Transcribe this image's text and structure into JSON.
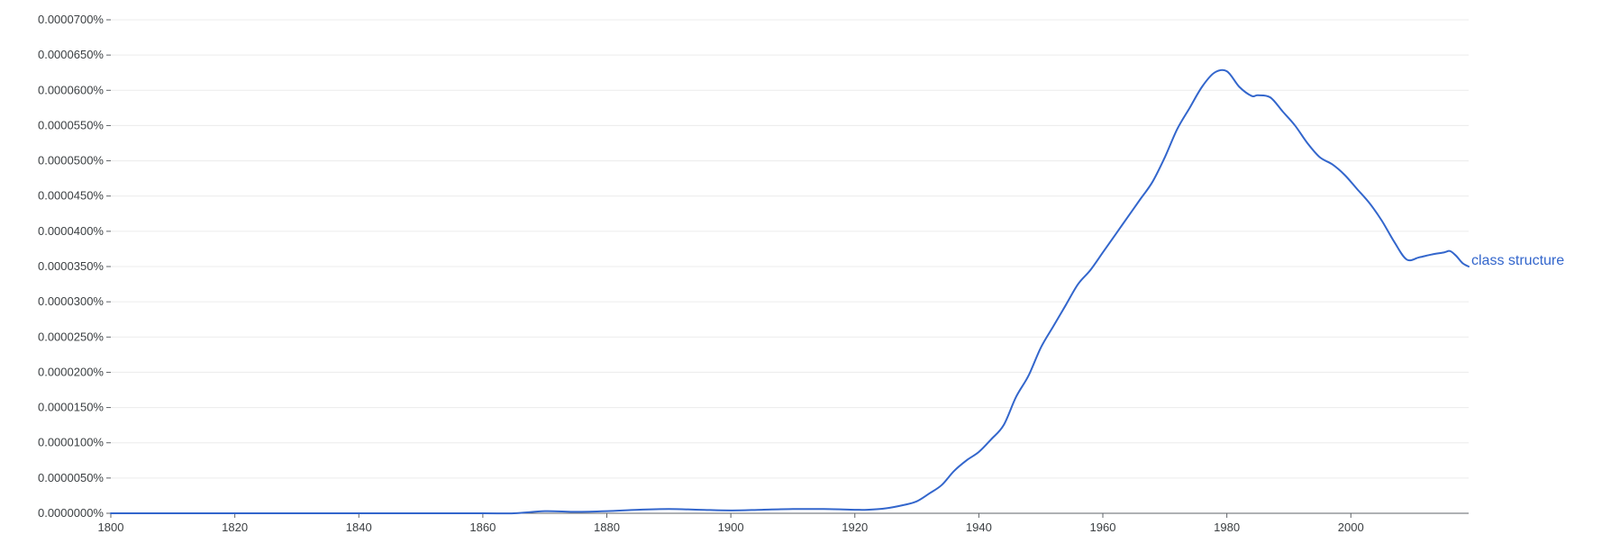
{
  "chart_data": {
    "type": "line",
    "title": "",
    "xlabel": "",
    "ylabel": "",
    "xlim": [
      1800,
      2019
    ],
    "ylim": [
      0,
      7e-07
    ],
    "grid": true,
    "legend": "inline-end-of-line",
    "x_ticks": [
      1800,
      1820,
      1840,
      1860,
      1880,
      1900,
      1920,
      1940,
      1960,
      1980,
      2000
    ],
    "x_tick_labels": [
      "1800",
      "1820",
      "1840",
      "1860",
      "1880",
      "1900",
      "1920",
      "1940",
      "1960",
      "1980",
      "2000"
    ],
    "y_ticks": [
      0,
      5e-08,
      1e-07,
      1.5e-07,
      2e-07,
      2.5e-07,
      3e-07,
      3.5e-07,
      4e-07,
      4.5e-07,
      5e-07,
      5.5e-07,
      6e-07,
      6.5e-07,
      7e-07
    ],
    "y_tick_labels": [
      "0.0000000%",
      "0.0000050%",
      "0.0000100%",
      "0.0000150%",
      "0.0000200%",
      "0.0000250%",
      "0.0000300%",
      "0.0000350%",
      "0.0000400%",
      "0.0000450%",
      "0.0000500%",
      "0.0000550%",
      "0.0000600%",
      "0.0000650%",
      "0.0000700%"
    ],
    "series": [
      {
        "name": "class structure",
        "color": "#3366cc",
        "x": [
          1800,
          1810,
          1820,
          1830,
          1840,
          1850,
          1860,
          1865,
          1870,
          1875,
          1880,
          1885,
          1890,
          1895,
          1900,
          1905,
          1910,
          1915,
          1920,
          1922,
          1925,
          1928,
          1930,
          1932,
          1934,
          1936,
          1938,
          1940,
          1942,
          1944,
          1946,
          1948,
          1950,
          1952,
          1954,
          1956,
          1958,
          1960,
          1962,
          1964,
          1966,
          1968,
          1970,
          1972,
          1974,
          1976,
          1978,
          1980,
          1982,
          1984,
          1985,
          1987,
          1989,
          1991,
          1993,
          1995,
          1997,
          1999,
          2001,
          2003,
          2005,
          2007,
          2009,
          2011,
          2013,
          2015,
          2016,
          2017,
          2018,
          2019
        ],
        "values": [
          0.0,
          0.0,
          0.0,
          0.0,
          0.0,
          0.0,
          0.0,
          0.0,
          3e-09,
          2e-09,
          3e-09,
          5e-09,
          6e-09,
          5e-09,
          4e-09,
          5e-09,
          6e-09,
          6e-09,
          5e-09,
          5e-09,
          7e-09,
          1.2e-08,
          1.7e-08,
          2.8e-08,
          4e-08,
          6e-08,
          7.5e-08,
          8.7e-08,
          1.05e-07,
          1.25e-07,
          1.65e-07,
          1.95e-07,
          2.35e-07,
          2.65e-07,
          2.95e-07,
          3.25e-07,
          3.45e-07,
          3.7e-07,
          3.95e-07,
          4.2e-07,
          4.45e-07,
          4.7e-07,
          5.05e-07,
          5.45e-07,
          5.75e-07,
          6.05e-07,
          6.25e-07,
          6.27e-07,
          6.05e-07,
          5.92e-07,
          5.93e-07,
          5.9e-07,
          5.7e-07,
          5.5e-07,
          5.25e-07,
          5.05e-07,
          4.95e-07,
          4.8e-07,
          4.6e-07,
          4.4e-07,
          4.15e-07,
          3.85e-07,
          3.6e-07,
          3.63e-07,
          3.67e-07,
          3.7e-07,
          3.72e-07,
          3.65e-07,
          3.55e-07,
          3.5e-07
        ]
      }
    ]
  }
}
